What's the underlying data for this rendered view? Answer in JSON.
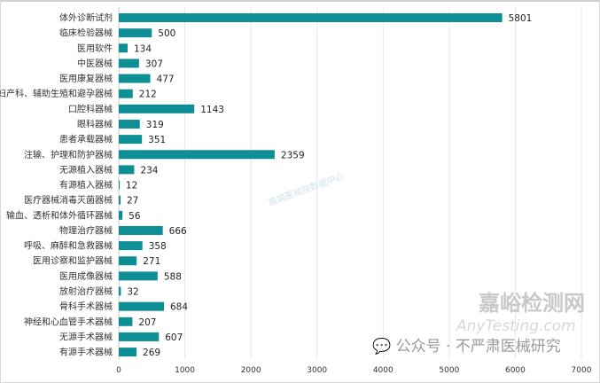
{
  "chart_data": {
    "type": "bar",
    "orientation": "horizontal",
    "categories": [
      "体外诊断试剂",
      "临床检验器械",
      "医用软件",
      "中医器械",
      "医用康复器械",
      "妇产科、辅助生殖和避孕器械",
      "口腔科器械",
      "眼科器械",
      "患者承载器械",
      "注输、护理和防护器械",
      "无源植入器械",
      "有源植入器械",
      "医疗器械消毒灭菌器械",
      "输血、透析和体外循环器械",
      "物理治疗器械",
      "呼吸、麻醉和急救器械",
      "医用诊察和监护器械",
      "医用成像器械",
      "放射治疗器械",
      "骨科手术器械",
      "神经和心血管手术器械",
      "无源手术器械",
      "有源手术器械"
    ],
    "values": [
      5801,
      500,
      134,
      307,
      477,
      212,
      1143,
      319,
      351,
      2359,
      234,
      12,
      27,
      56,
      666,
      358,
      271,
      588,
      32,
      684,
      207,
      607,
      269
    ],
    "xlim": [
      0,
      7000
    ],
    "xticks": [
      "0",
      "1000",
      "2000",
      "3000",
      "4000",
      "5000",
      "6000",
      "7000"
    ],
    "grid": true,
    "bar_color": "#0e8f96",
    "title": "",
    "xlabel": "",
    "ylabel": ""
  },
  "watermarks": {
    "center": "高端医械院数据中心",
    "wechat": "公众号 · 不严肃医械研究",
    "site": "嘉峪检测网",
    "site_url": "AnyTesting.com"
  }
}
